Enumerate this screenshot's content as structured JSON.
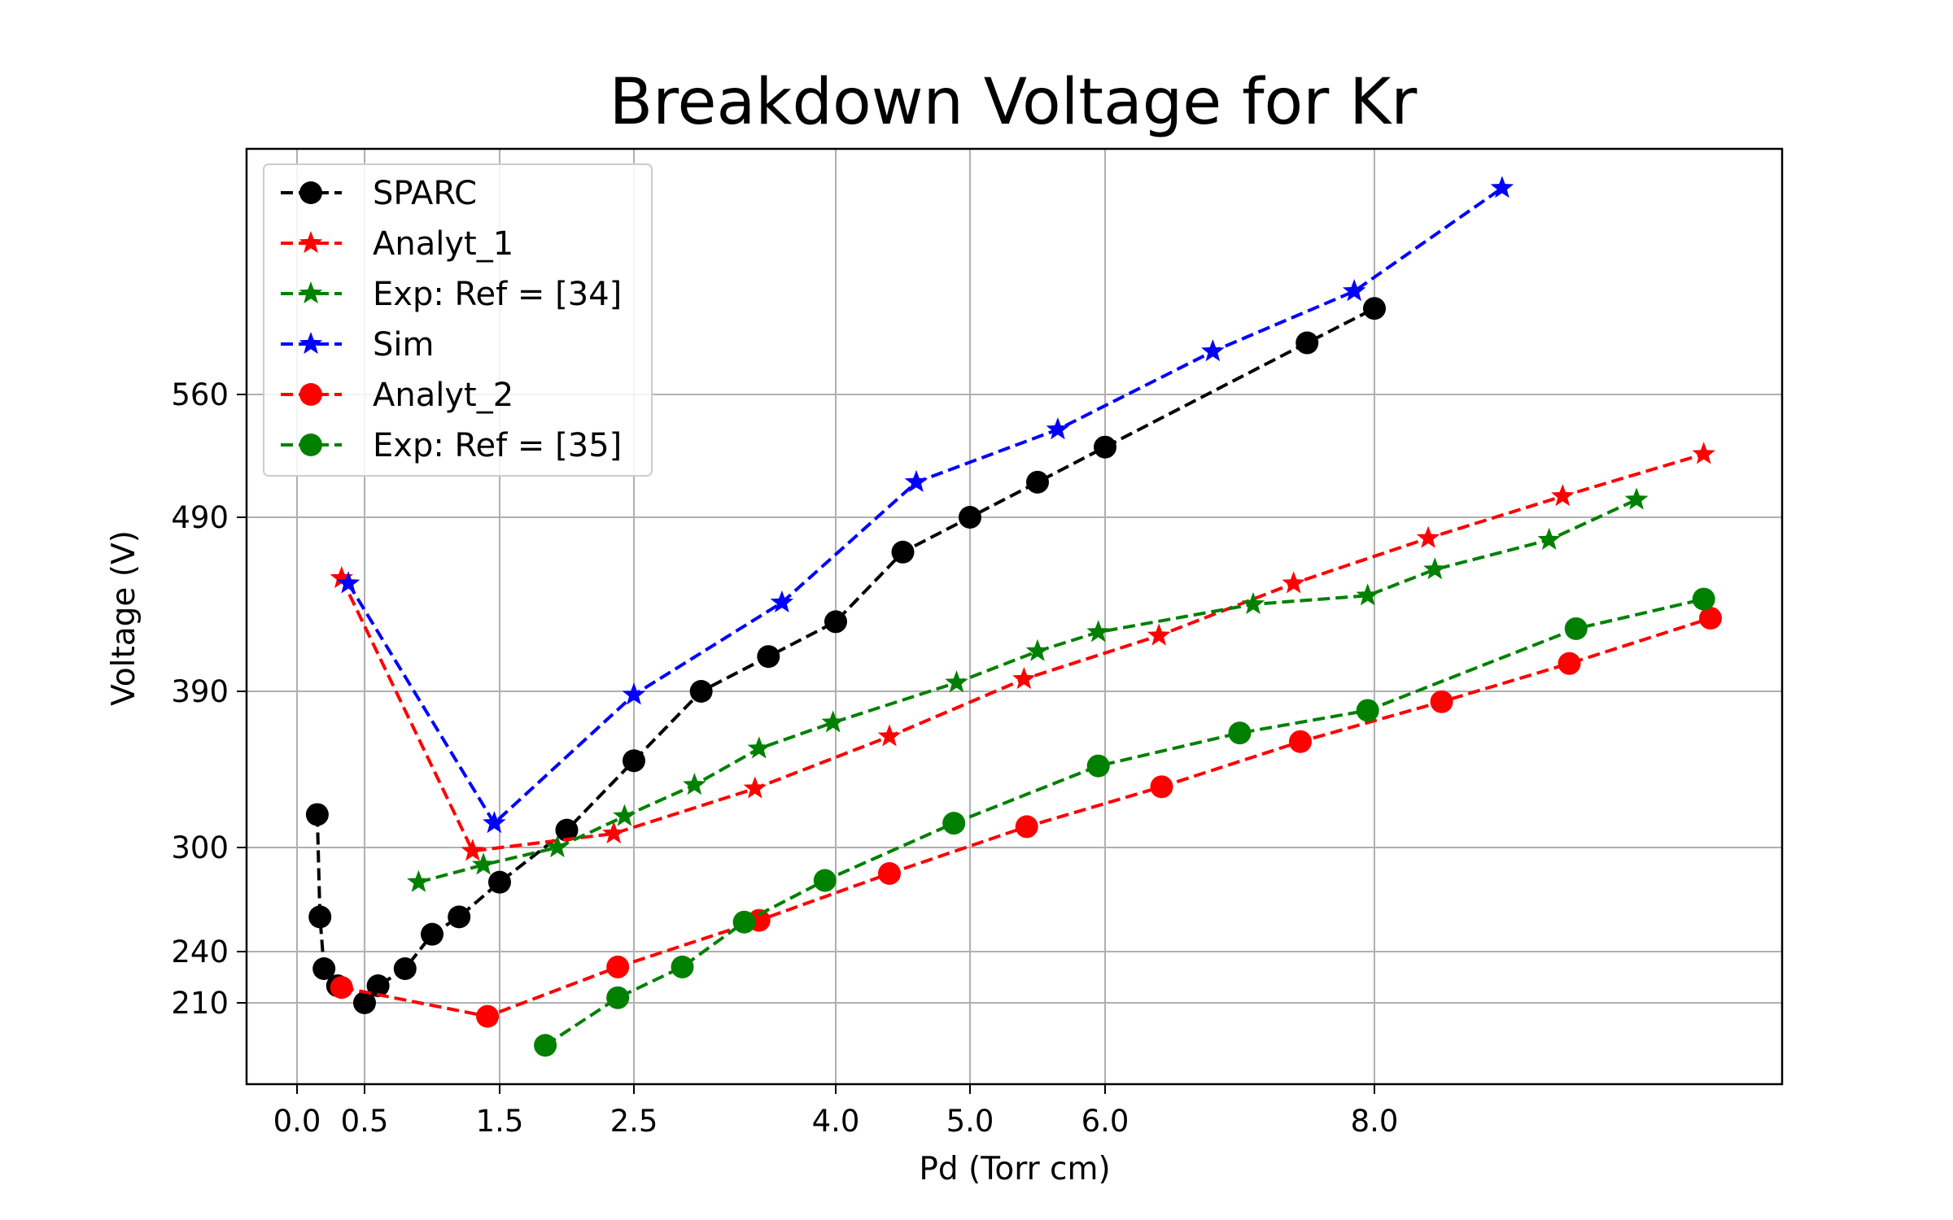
{
  "chart_data": {
    "type": "line",
    "title": "Breakdown Voltage for Kr",
    "xlabel": "Pd (Torr cm)",
    "ylabel": "Voltage (V)",
    "xticks": [
      {
        "value": 0.0,
        "label": "0.0"
      },
      {
        "value": 0.5,
        "label": "0.5"
      },
      {
        "value": 1.5,
        "label": "1.5"
      },
      {
        "value": 2.5,
        "label": "2.5"
      },
      {
        "value": 4.0,
        "label": "4.0"
      },
      {
        "value": 5.0,
        "label": "5.0"
      },
      {
        "value": 6.0,
        "label": "6.0"
      },
      {
        "value": 8.0,
        "label": "8.0"
      }
    ],
    "yticks": [
      {
        "value": 210,
        "label": "210"
      },
      {
        "value": 240,
        "label": "240"
      },
      {
        "value": 300,
        "label": "300"
      },
      {
        "value": 390,
        "label": "390"
      },
      {
        "value": 490,
        "label": "490"
      },
      {
        "value": 560,
        "label": "560"
      }
    ],
    "grid": true,
    "legend_position": "top-left",
    "series": [
      {
        "name": "SPARC",
        "color": "#000000",
        "marker": "circle",
        "x": [
          0.15,
          0.17,
          0.2,
          0.3,
          0.5,
          0.6,
          0.8,
          1.0,
          1.2,
          1.5,
          2.0,
          2.5,
          3.0,
          3.5,
          4.0,
          4.5,
          5.0,
          5.5,
          6.0,
          7.5,
          8.0
        ],
        "y": [
          319,
          260,
          230,
          220,
          210,
          220,
          230,
          250,
          260,
          280,
          310,
          350,
          390,
          410,
          430,
          470,
          490,
          510,
          530,
          590,
          610
        ]
      },
      {
        "name": "Analyt_1",
        "color": "#ff0000",
        "marker": "star",
        "x": [
          0.33,
          1.3,
          2.35,
          3.4,
          4.4,
          5.4,
          6.4,
          7.4,
          8.4,
          9.4,
          10.45
        ],
        "y": [
          455,
          298,
          308,
          334,
          364,
          397,
          422,
          452,
          478,
          502,
          526
        ]
      },
      {
        "name": "Exp: Ref = [34]",
        "color": "#008000",
        "marker": "star",
        "x": [
          0.9,
          1.38,
          1.93,
          2.43,
          2.95,
          3.43,
          3.98,
          4.9,
          5.5,
          5.95,
          7.1,
          7.95,
          8.45,
          9.3,
          9.95
        ],
        "y": [
          280,
          290,
          300,
          318,
          336,
          357,
          372,
          395,
          413,
          424,
          440,
          445,
          460,
          477,
          500
        ]
      },
      {
        "name": "Sim",
        "color": "#0000ff",
        "marker": "star",
        "x": [
          0.38,
          1.46,
          2.5,
          3.6,
          4.6,
          5.65,
          6.8,
          7.85,
          8.95
        ],
        "y": [
          452,
          314,
          388,
          441,
          510,
          540,
          585,
          620,
          680
        ]
      },
      {
        "name": "Analyt_2",
        "color": "#ff0000",
        "marker": "circle",
        "x": [
          0.33,
          1.41,
          2.38,
          3.43,
          4.4,
          5.42,
          6.42,
          7.45,
          8.5,
          9.45,
          10.5
        ],
        "y": [
          219,
          203,
          231,
          258,
          285,
          312,
          335,
          361,
          384,
          406,
          432
        ]
      },
      {
        "name": "Exp: Ref = [35]",
        "color": "#008000",
        "marker": "circle",
        "x": [
          1.84,
          2.38,
          2.86,
          3.32,
          3.92,
          4.88,
          5.95,
          7.0,
          7.95,
          9.5,
          10.45
        ],
        "y": [
          188,
          213,
          231,
          257,
          281,
          314,
          347,
          366,
          379,
          426,
          443
        ]
      }
    ]
  }
}
